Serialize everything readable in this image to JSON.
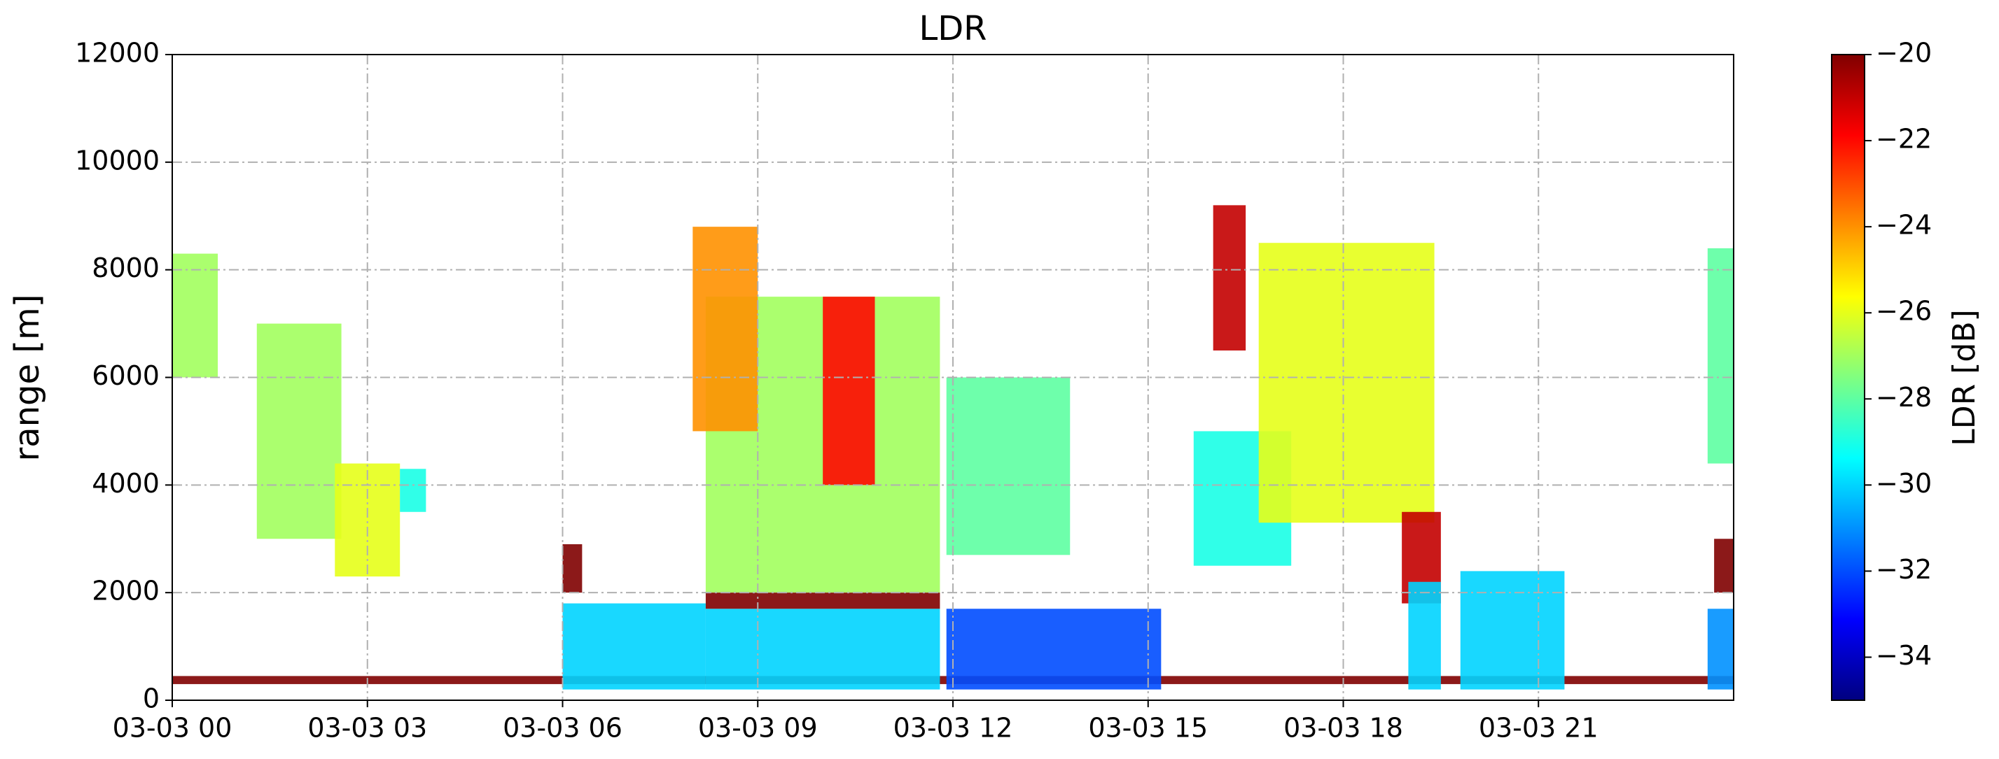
{
  "chart_data": {
    "type": "heatmap",
    "title": "LDR",
    "y_label": "range [m]",
    "xlim": [
      0,
      24
    ],
    "xticks": [
      {
        "value": 0,
        "label": "03-03 00"
      },
      {
        "value": 3,
        "label": "03-03 03"
      },
      {
        "value": 6,
        "label": "03-03 06"
      },
      {
        "value": 9,
        "label": "03-03 09"
      },
      {
        "value": 12,
        "label": "03-03 12"
      },
      {
        "value": 15,
        "label": "03-03 15"
      },
      {
        "value": 18,
        "label": "03-03 18"
      },
      {
        "value": 21,
        "label": "03-03 21"
      }
    ],
    "ylim": [
      0,
      12000
    ],
    "yticks": [
      0,
      2000,
      4000,
      6000,
      8000,
      10000,
      12000
    ],
    "grid": true,
    "colormap": "jet",
    "colorbar": {
      "label": "LDR [dB]",
      "lim": [
        -35,
        -20
      ],
      "ticks": [
        {
          "value": -34,
          "label": "−34"
        },
        {
          "value": -32,
          "label": "−32"
        },
        {
          "value": -30,
          "label": "−30"
        },
        {
          "value": -28,
          "label": "−28"
        },
        {
          "value": -26,
          "label": "−26"
        },
        {
          "value": -24,
          "label": "−24"
        },
        {
          "value": -22,
          "label": "−22"
        },
        {
          "value": -20,
          "label": "−20"
        }
      ]
    },
    "cells": [
      {
        "t0": 0,
        "t1": 24,
        "r0": 300,
        "r1": 450,
        "ldr": -20
      },
      {
        "t0": 0,
        "t1": 0.7,
        "r0": 6000,
        "r1": 8300,
        "ldr": -27
      },
      {
        "t0": 1.3,
        "t1": 2.6,
        "r0": 3000,
        "r1": 7000,
        "ldr": -27
      },
      {
        "t0": 2.5,
        "t1": 3.5,
        "r0": 2300,
        "r1": 4400,
        "ldr": -26
      },
      {
        "t0": 3.5,
        "t1": 3.9,
        "r0": 3500,
        "r1": 4300,
        "ldr": -29
      },
      {
        "t0": 6.0,
        "t1": 6.3,
        "r0": 2000,
        "r1": 2900,
        "ldr": -20
      },
      {
        "t0": 6.0,
        "t1": 8.2,
        "r0": 200,
        "r1": 1800,
        "ldr": -30
      },
      {
        "t0": 8.2,
        "t1": 11.8,
        "r0": 2000,
        "r1": 7500,
        "ldr": -27
      },
      {
        "t0": 8.0,
        "t1": 9.0,
        "r0": 5000,
        "r1": 8800,
        "ldr": -24
      },
      {
        "t0": 10.0,
        "t1": 10.8,
        "r0": 4000,
        "r1": 7500,
        "ldr": -22
      },
      {
        "t0": 8.2,
        "t1": 11.8,
        "r0": 200,
        "r1": 1700,
        "ldr": -30
      },
      {
        "t0": 8.2,
        "t1": 11.8,
        "r0": 1700,
        "r1": 2000,
        "ldr": -20
      },
      {
        "t0": 11.9,
        "t1": 13.8,
        "r0": 2700,
        "r1": 6000,
        "ldr": -28
      },
      {
        "t0": 11.9,
        "t1": 15.2,
        "r0": 200,
        "r1": 1700,
        "ldr": -32
      },
      {
        "t0": 15.7,
        "t1": 17.2,
        "r0": 2500,
        "r1": 5000,
        "ldr": -29
      },
      {
        "t0": 16.7,
        "t1": 19.4,
        "r0": 3300,
        "r1": 8500,
        "ldr": -26
      },
      {
        "t0": 16.0,
        "t1": 16.5,
        "r0": 6500,
        "r1": 9200,
        "ldr": -21
      },
      {
        "t0": 18.9,
        "t1": 19.5,
        "r0": 1800,
        "r1": 3500,
        "ldr": -21
      },
      {
        "t0": 19.0,
        "t1": 19.5,
        "r0": 200,
        "r1": 2200,
        "ldr": -30
      },
      {
        "t0": 19.8,
        "t1": 21.4,
        "r0": 200,
        "r1": 2400,
        "ldr": -30
      },
      {
        "t0": 23.6,
        "t1": 24,
        "r0": 4400,
        "r1": 8400,
        "ldr": -28
      },
      {
        "t0": 23.7,
        "t1": 24,
        "r0": 2000,
        "r1": 3000,
        "ldr": -20
      },
      {
        "t0": 23.6,
        "t1": 24,
        "r0": 200,
        "r1": 1700,
        "ldr": -31
      }
    ]
  }
}
